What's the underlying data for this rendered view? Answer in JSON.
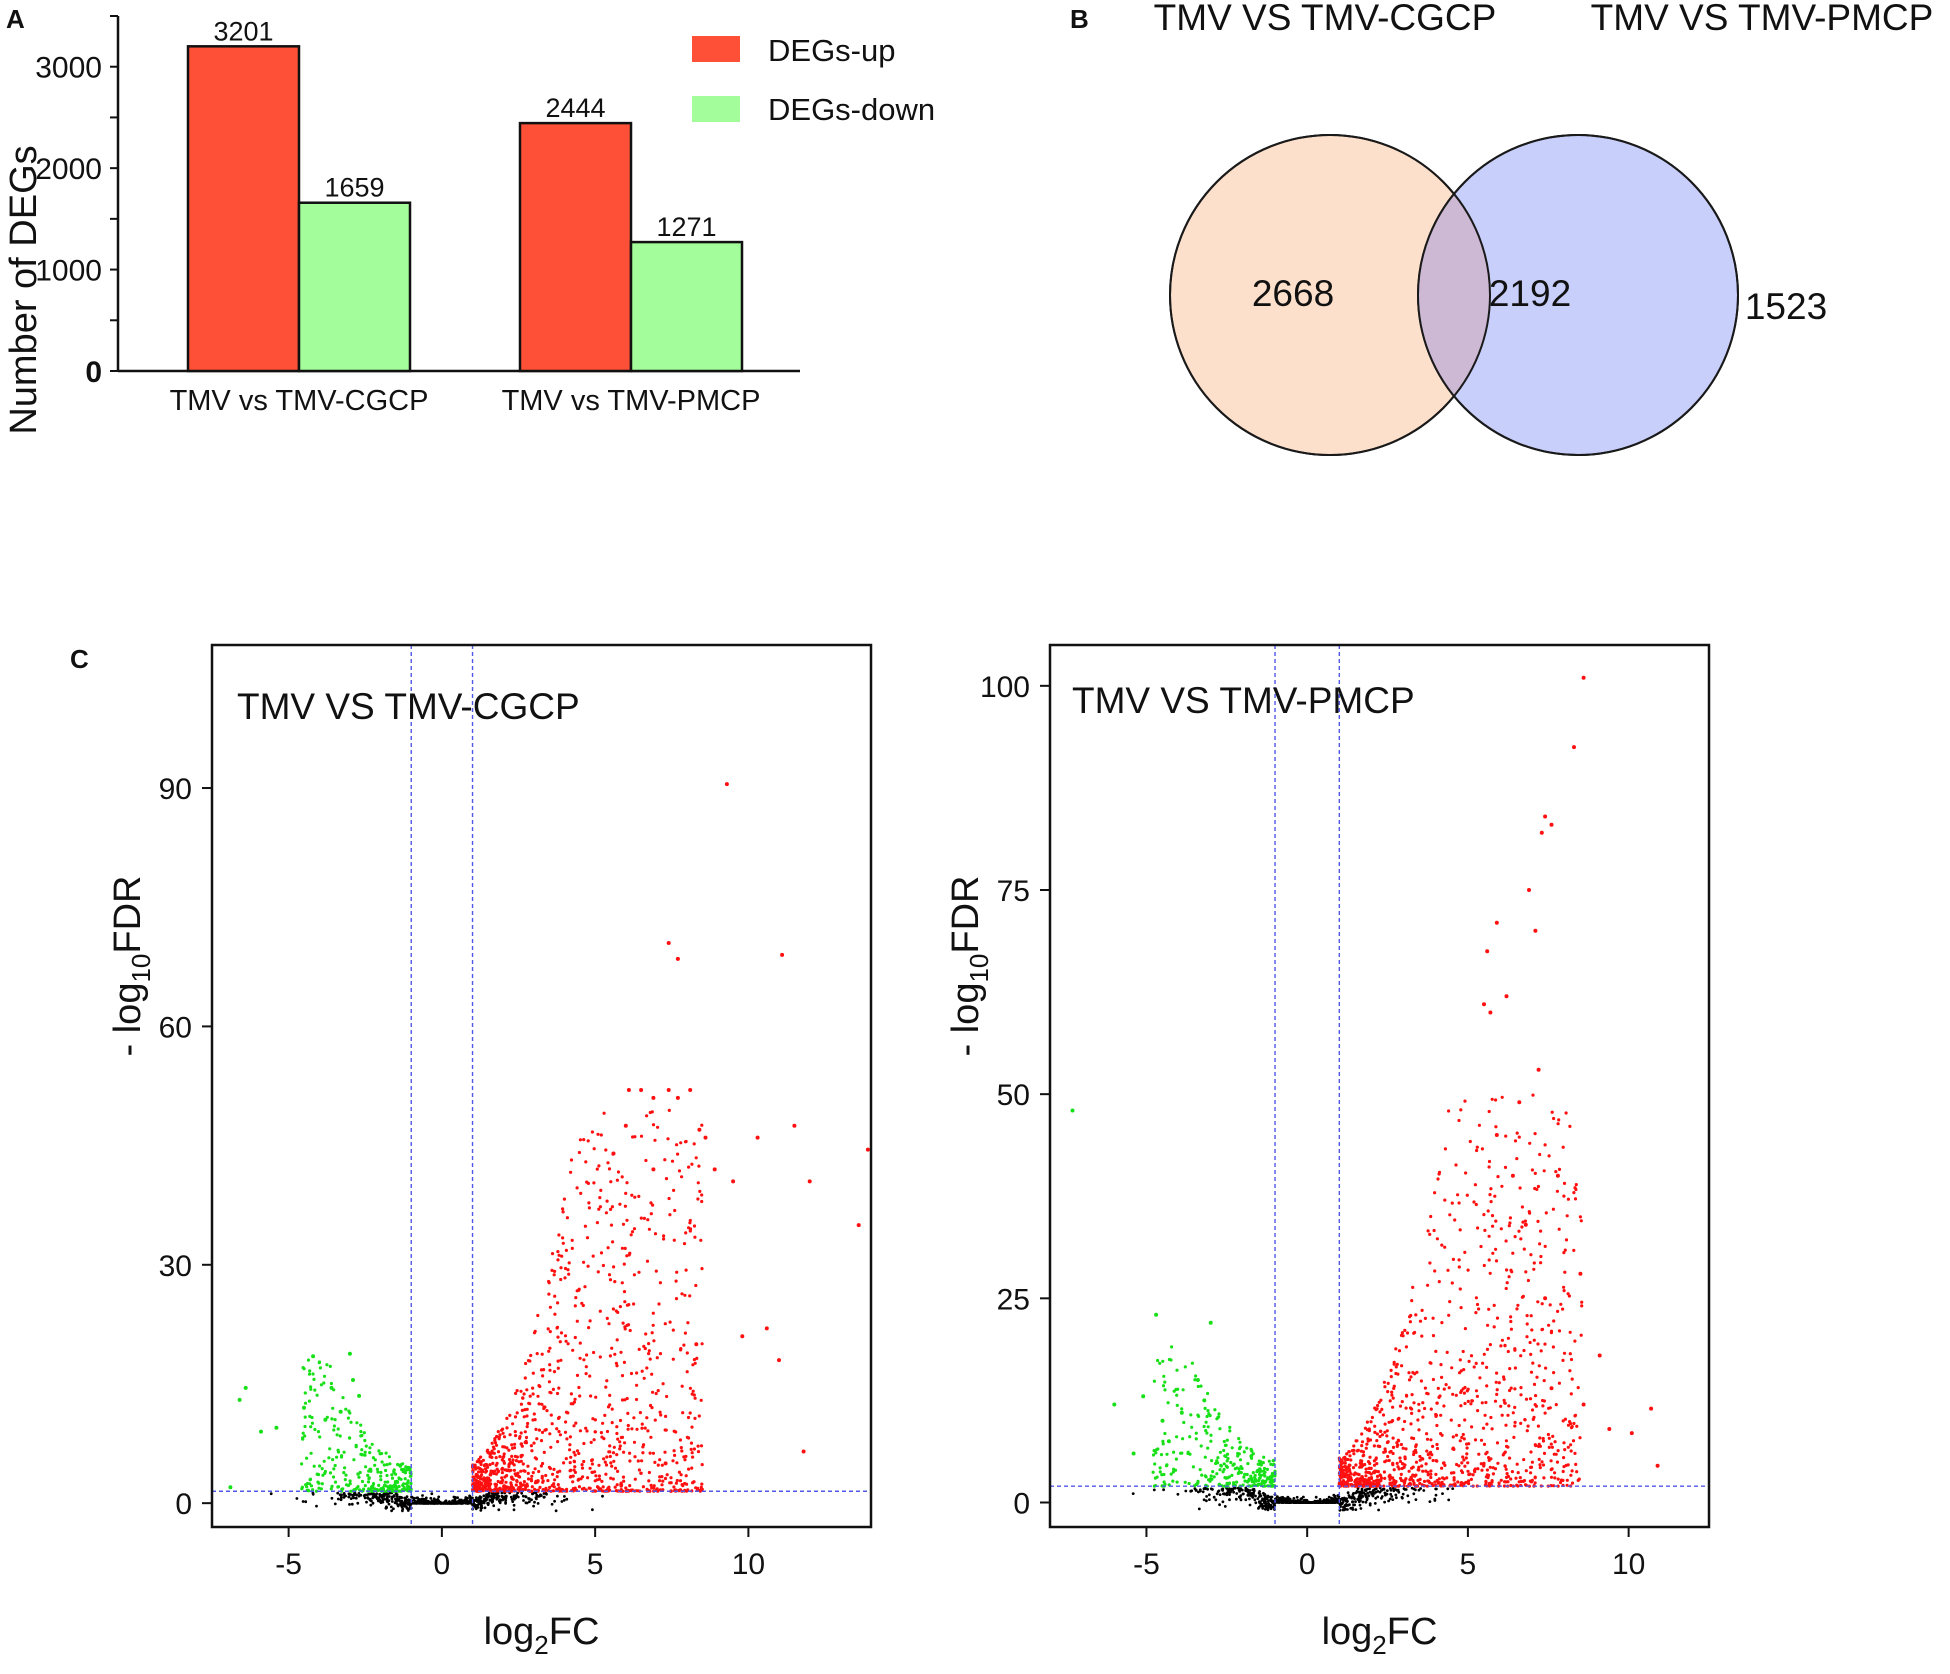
{
  "panels": {
    "a": "A",
    "b": "B",
    "c": "C"
  },
  "colors": {
    "up": "#fe5036",
    "down": "#a2fd9a",
    "venn_left": "#fde0cb",
    "venn_right": "#c9cffb",
    "venn_overlap": "#cdb9d4",
    "volc_up": "#ff1010",
    "volc_down": "#18e018",
    "volc_ns": "#000000",
    "threshold": "#5058e8"
  },
  "chart_data": [
    {
      "id": "deg-bar",
      "type": "bar",
      "title": "",
      "xlabel": "",
      "ylabel": "Number of DEGs",
      "ylim": [
        0,
        3500
      ],
      "yticks": [
        0,
        1000,
        2000,
        3000
      ],
      "categories": [
        "TMV vs TMV-CGCP",
        "TMV vs TMV-PMCP"
      ],
      "series": [
        {
          "name": "DEGs-up",
          "values": [
            3201,
            2444
          ]
        },
        {
          "name": "DEGs-down",
          "values": [
            1659,
            1271
          ]
        }
      ],
      "legend_position": "top-right"
    },
    {
      "id": "deg-venn",
      "type": "venn",
      "sets": [
        "TMV VS TMV-CGCP",
        "TMV VS TMV-PMCP"
      ],
      "values": {
        "left_only": "2668",
        "both": "2192",
        "right_only": "1523"
      }
    },
    {
      "id": "volcano-cgcp",
      "type": "scatter",
      "title": "TMV VS TMV-CGCP",
      "xlabel": "log2FC",
      "ylabel": "- log10FDR",
      "xlim": [
        -7.5,
        14
      ],
      "ylim": [
        -3,
        108
      ],
      "xticks": [
        -5,
        0,
        5,
        10
      ],
      "yticks": [
        0,
        30,
        60,
        90
      ],
      "fc_thresholds": [
        -1,
        1
      ],
      "fdr_threshold": 1.5,
      "series": [
        {
          "name": "up",
          "points": [
            [
              9.3,
              90.5
            ],
            [
              7.4,
              70.5
            ],
            [
              7.7,
              68.5
            ],
            [
              11.1,
              69
            ],
            [
              6.1,
              52
            ],
            [
              6.5,
              52
            ],
            [
              6.9,
              51
            ],
            [
              7.4,
              52
            ],
            [
              8.1,
              52
            ],
            [
              7.7,
              51
            ],
            [
              11.5,
              47.5
            ],
            [
              10.3,
              46
            ],
            [
              13.9,
              44.5
            ],
            [
              9.5,
              40.5
            ],
            [
              12.0,
              40.5
            ],
            [
              13.6,
              35
            ],
            [
              8.9,
              42
            ],
            [
              8.6,
              46
            ],
            [
              8.4,
              47
            ],
            [
              10.6,
              22
            ],
            [
              11.0,
              18
            ],
            [
              11.8,
              6.5
            ],
            [
              8.3,
              20
            ],
            [
              9.8,
              21
            ],
            [
              7.3,
              5
            ],
            [
              6.0,
              47.5
            ],
            [
              5.6,
              44
            ],
            [
              6.9,
              42
            ]
          ]
        },
        {
          "name": "down",
          "points": [
            [
              -6.9,
              2
            ],
            [
              -6.4,
              14.5
            ],
            [
              -6.6,
              13
            ],
            [
              -5.9,
              9
            ],
            [
              -5.4,
              9.5
            ],
            [
              -4.2,
              18.5
            ],
            [
              -3.0,
              18.8
            ],
            [
              -3.6,
              14.5
            ],
            [
              -4.5,
              12
            ],
            [
              -3.8,
              10.5
            ],
            [
              -3.3,
              11.5
            ],
            [
              -2.7,
              13.5
            ],
            [
              -2.9,
              15.5
            ]
          ]
        }
      ],
      "dense_regions": {
        "up_x": [
          1.0,
          8.5
        ],
        "down_x": [
          -4.6,
          -1.0
        ]
      }
    },
    {
      "id": "volcano-pmcp",
      "type": "scatter",
      "title": "TMV VS TMV-PMCP",
      "xlabel": "log2FC",
      "ylabel": "- log10FDR",
      "xlim": [
        -8,
        12.5
      ],
      "ylim": [
        -3,
        105
      ],
      "xticks": [
        -5,
        0,
        5,
        10
      ],
      "yticks": [
        0,
        25,
        50,
        75,
        100
      ],
      "fc_thresholds": [
        -1,
        1
      ],
      "fdr_threshold": 2,
      "series": [
        {
          "name": "up",
          "points": [
            [
              8.6,
              101
            ],
            [
              8.3,
              92.5
            ],
            [
              7.4,
              84
            ],
            [
              7.6,
              83
            ],
            [
              7.3,
              82
            ],
            [
              6.9,
              75
            ],
            [
              7.1,
              70
            ],
            [
              5.9,
              71
            ],
            [
              5.6,
              67.5
            ],
            [
              6.2,
              62
            ],
            [
              5.5,
              61
            ],
            [
              5.7,
              60
            ],
            [
              7.2,
              53
            ],
            [
              6.6,
              49
            ],
            [
              8.5,
              28
            ],
            [
              7.4,
              25
            ],
            [
              7.8,
              40
            ],
            [
              9.1,
              18
            ],
            [
              10.1,
              8.5
            ],
            [
              10.7,
              11.5
            ],
            [
              10.9,
              4.5
            ],
            [
              9.4,
              9
            ],
            [
              8.6,
              12
            ],
            [
              7.6,
              14
            ],
            [
              5.9,
              45
            ],
            [
              6.4,
              40
            ],
            [
              6.8,
              34
            ]
          ]
        },
        {
          "name": "down",
          "points": [
            [
              -7.3,
              48
            ],
            [
              -4.7,
              23
            ],
            [
              -3.0,
              22
            ],
            [
              -6.0,
              12
            ],
            [
              -5.1,
              13
            ],
            [
              -4.5,
              10
            ],
            [
              -4.3,
              7.5
            ],
            [
              -3.9,
              11
            ],
            [
              -3.4,
              15
            ],
            [
              -3.2,
              12.5
            ],
            [
              -5.4,
              6
            ]
          ]
        }
      ],
      "dense_regions": {
        "up_x": [
          1.0,
          8.6
        ],
        "down_x": [
          -4.8,
          -1.0
        ]
      }
    }
  ]
}
